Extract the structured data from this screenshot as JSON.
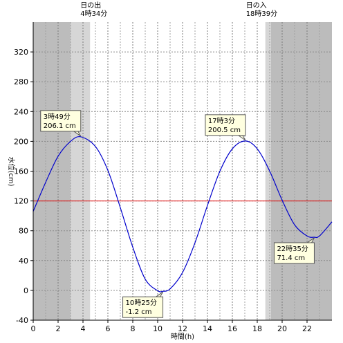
{
  "chart_data": {
    "type": "line",
    "xlabel": "時間(h)",
    "ylabel": "水位(cm)",
    "xlim": [
      0,
      24
    ],
    "ylim": [
      -40,
      360
    ],
    "x_ticks": [
      0,
      2,
      4,
      6,
      8,
      10,
      12,
      14,
      16,
      18,
      20,
      22
    ],
    "y_ticks": [
      -40,
      0,
      40,
      80,
      120,
      160,
      200,
      240,
      280,
      320
    ],
    "grid": true,
    "reference_line": {
      "value": 120,
      "color": "#e00000"
    },
    "sunrise": {
      "label": "日の出",
      "time_text": "4時34分",
      "hour": 4.567
    },
    "sunset": {
      "label": "日の入",
      "time_text": "18時39分",
      "hour": 18.65
    },
    "twilight": {
      "morning_start_hour": 3.0,
      "evening_end_hour": 19.1
    },
    "series": [
      {
        "color": "#0000cc",
        "x": [
          0,
          1,
          2,
          3,
          3.82,
          5,
          6,
          7,
          8,
          9,
          10,
          10.42,
          11,
          12,
          13,
          14,
          15,
          16,
          17.05,
          18,
          19,
          20,
          21,
          22,
          22.58,
          23,
          24
        ],
        "y": [
          106,
          145,
          180,
          200,
          206.1,
          193,
          161,
          111,
          58,
          15,
          -0.5,
          -1.2,
          2,
          24,
          64,
          114,
          160,
          190,
          200.5,
          190,
          160,
          121,
          88,
          73,
          71.4,
          73,
          92
        ]
      }
    ],
    "annotations": [
      {
        "line1": "3時49分",
        "line2": "206.1 cm",
        "x": 3.82,
        "y": 206.1,
        "position": "upper-left"
      },
      {
        "line1": "10時25分",
        "line2": "-1.2 cm",
        "x": 10.42,
        "y": -1.2,
        "position": "lower-left"
      },
      {
        "line1": "17時3分",
        "line2": "200.5 cm",
        "x": 17.05,
        "y": 200.5,
        "position": "upper-left"
      },
      {
        "line1": "22時35分",
        "line2": "71.4 cm",
        "x": 22.58,
        "y": 71.4,
        "position": "lower-left"
      }
    ]
  }
}
